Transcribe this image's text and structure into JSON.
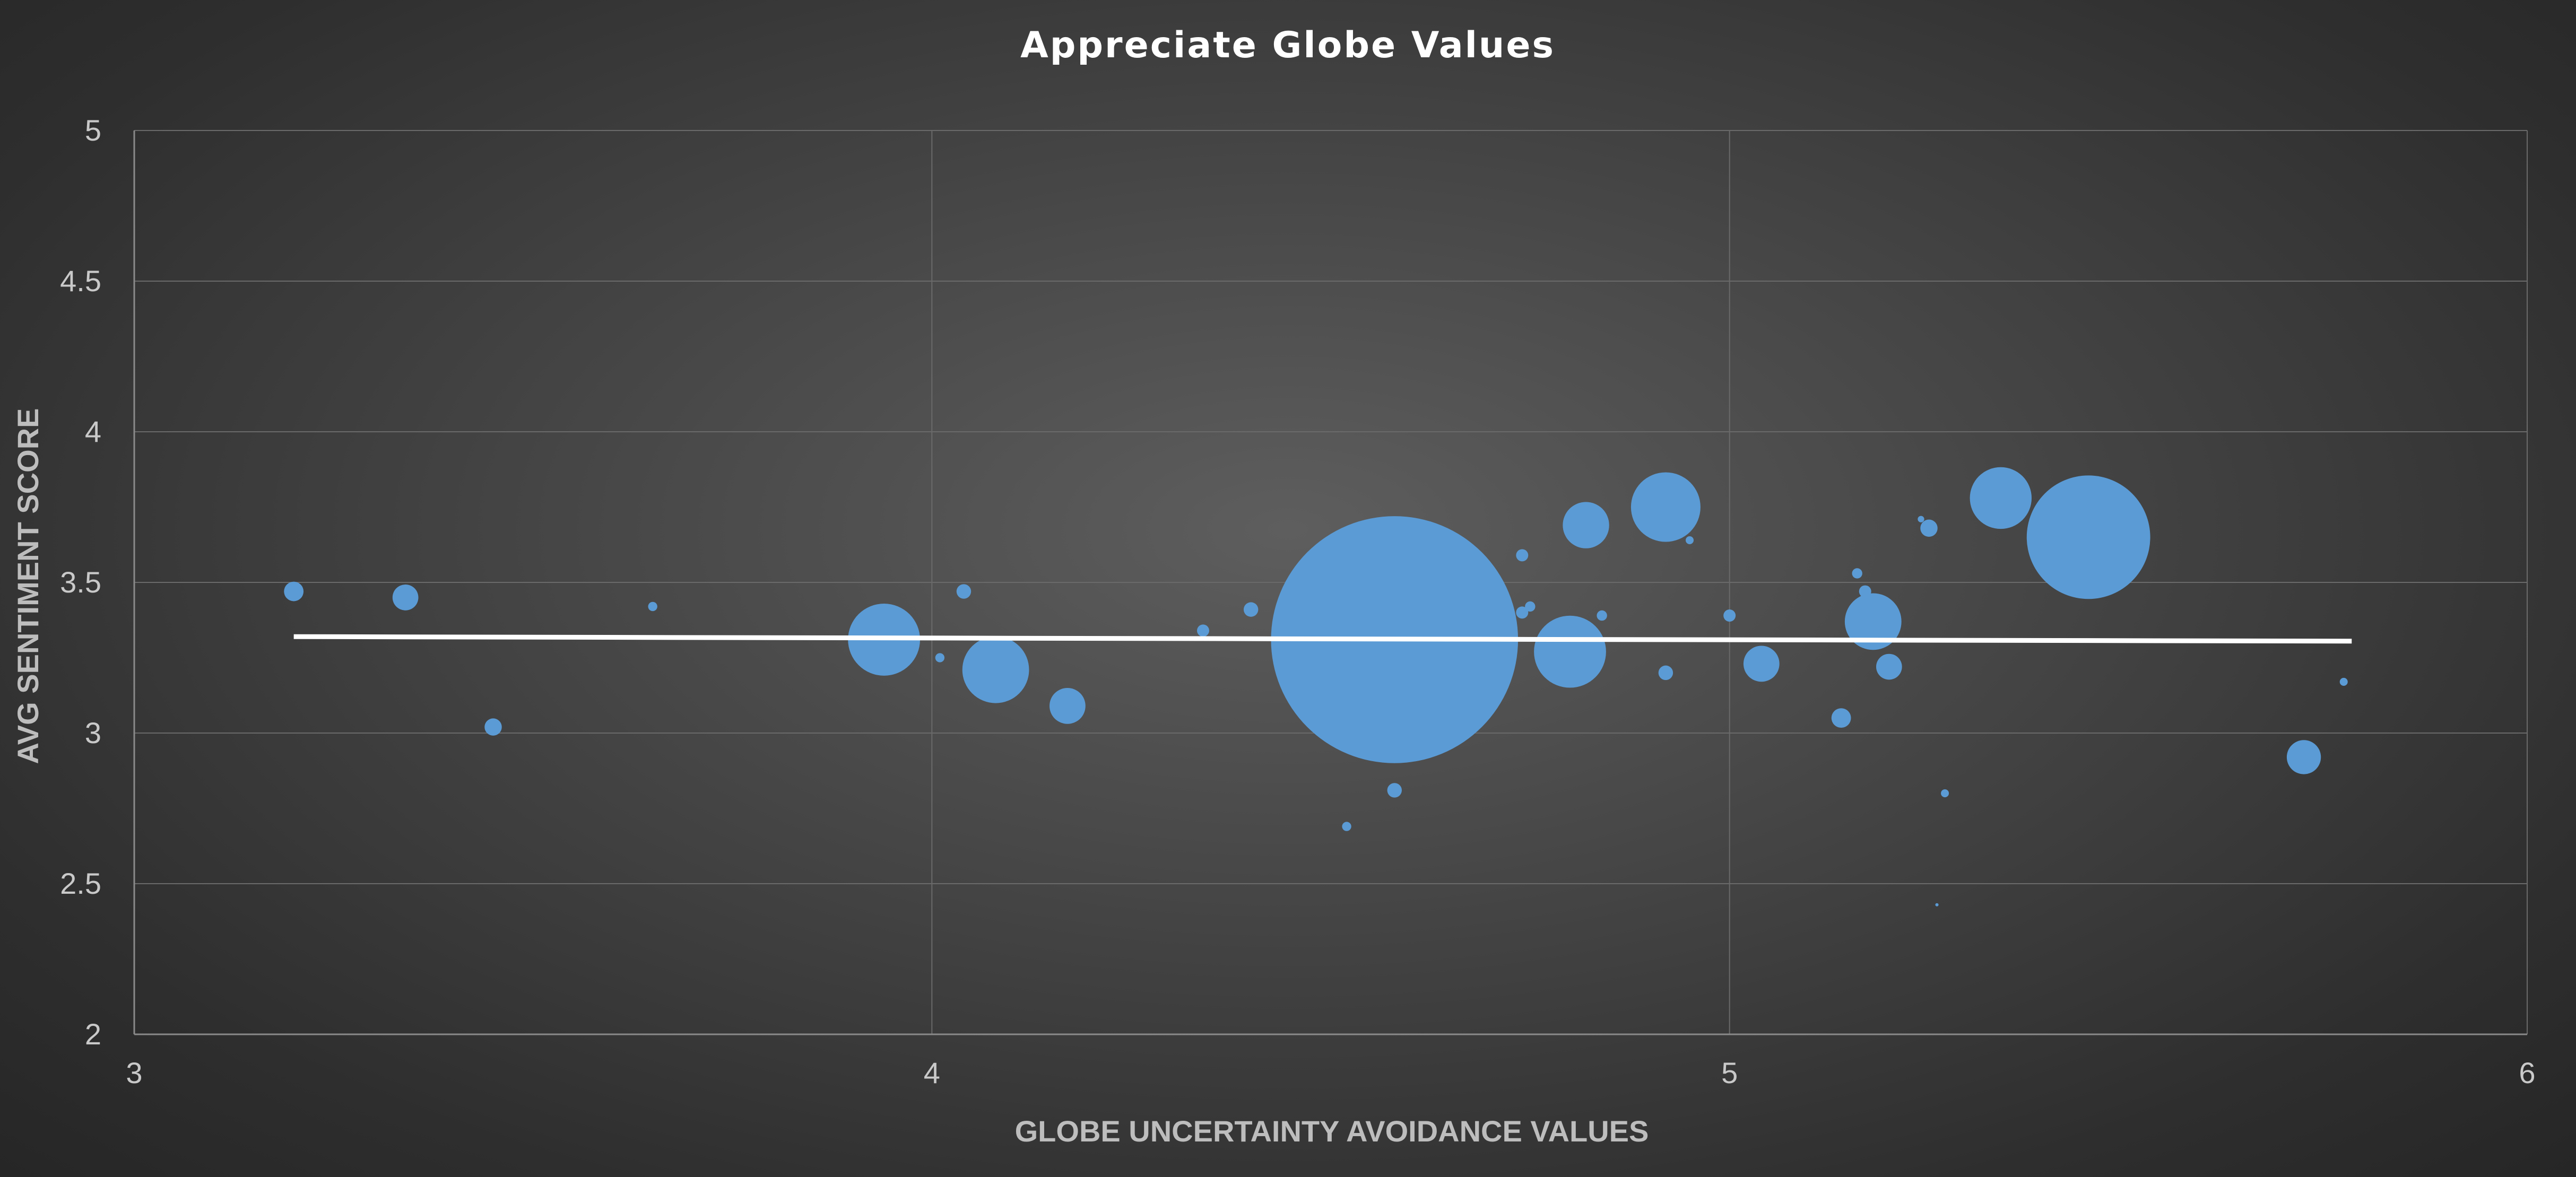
{
  "chart_data": {
    "type": "scatter",
    "subtype": "bubble",
    "title": "Appreciate Globe Values",
    "xlabel": "GLOBE UNCERTAINTY AVOIDANCE VALUES",
    "ylabel": "AVG SENTIMENT SCORE",
    "xlim": [
      3,
      6
    ],
    "ylim": [
      2,
      5
    ],
    "x_ticks": [
      3,
      4,
      5,
      6
    ],
    "x_tick_labels": [
      "3",
      "4",
      "5",
      "6"
    ],
    "y_ticks": [
      2,
      2.5,
      3,
      3.5,
      4,
      4.5,
      5
    ],
    "y_tick_labels": [
      "2",
      "2.5",
      "3",
      "3.5",
      "4",
      "4.5",
      "5"
    ],
    "grid": true,
    "legend": "none",
    "bubble_color": "#5b9bd5",
    "trendline": {
      "type": "linear",
      "color": "#ffffff",
      "x": [
        3.2,
        5.78
      ],
      "y": [
        3.32,
        3.305
      ]
    },
    "points": [
      {
        "x": 3.2,
        "y": 3.47,
        "size": 3.6
      },
      {
        "x": 3.34,
        "y": 3.45,
        "size": 6.3
      },
      {
        "x": 3.45,
        "y": 3.02,
        "size": 2.8
      },
      {
        "x": 3.65,
        "y": 3.42,
        "size": 0.8
      },
      {
        "x": 3.94,
        "y": 3.31,
        "size": 49
      },
      {
        "x": 4.01,
        "y": 3.25,
        "size": 0.8
      },
      {
        "x": 4.04,
        "y": 3.47,
        "size": 2
      },
      {
        "x": 4.08,
        "y": 3.21,
        "size": 42
      },
      {
        "x": 4.17,
        "y": 3.09,
        "size": 12.2
      },
      {
        "x": 4.34,
        "y": 3.34,
        "size": 1.4
      },
      {
        "x": 4.4,
        "y": 3.41,
        "size": 2
      },
      {
        "x": 4.52,
        "y": 2.69,
        "size": 0.8
      },
      {
        "x": 4.58,
        "y": 3.31,
        "size": 576
      },
      {
        "x": 4.58,
        "y": 2.81,
        "size": 2
      },
      {
        "x": 4.74,
        "y": 3.59,
        "size": 1.4
      },
      {
        "x": 4.74,
        "y": 3.4,
        "size": 1.4
      },
      {
        "x": 4.75,
        "y": 3.42,
        "size": 1
      },
      {
        "x": 4.8,
        "y": 3.27,
        "size": 49
      },
      {
        "x": 4.82,
        "y": 3.69,
        "size": 20.3
      },
      {
        "x": 4.84,
        "y": 3.39,
        "size": 1
      },
      {
        "x": 4.92,
        "y": 3.75,
        "size": 45.6
      },
      {
        "x": 4.92,
        "y": 3.2,
        "size": 2
      },
      {
        "x": 4.95,
        "y": 3.64,
        "size": 0.6
      },
      {
        "x": 5.0,
        "y": 3.39,
        "size": 1.4
      },
      {
        "x": 5.04,
        "y": 3.23,
        "size": 12.2
      },
      {
        "x": 5.14,
        "y": 3.05,
        "size": 3.6
      },
      {
        "x": 5.16,
        "y": 3.53,
        "size": 1
      },
      {
        "x": 5.17,
        "y": 3.47,
        "size": 1.4
      },
      {
        "x": 5.18,
        "y": 3.37,
        "size": 30.3
      },
      {
        "x": 5.2,
        "y": 3.22,
        "size": 6.3
      },
      {
        "x": 5.24,
        "y": 3.71,
        "size": 0.4
      },
      {
        "x": 5.25,
        "y": 3.68,
        "size": 2.8
      },
      {
        "x": 5.26,
        "y": 2.43,
        "size": 0.1
      },
      {
        "x": 5.27,
        "y": 2.8,
        "size": 0.6
      },
      {
        "x": 5.34,
        "y": 3.78,
        "size": 36
      },
      {
        "x": 5.45,
        "y": 3.65,
        "size": 144
      },
      {
        "x": 5.72,
        "y": 2.92,
        "size": 11
      },
      {
        "x": 5.77,
        "y": 3.17,
        "size": 0.6
      }
    ]
  }
}
